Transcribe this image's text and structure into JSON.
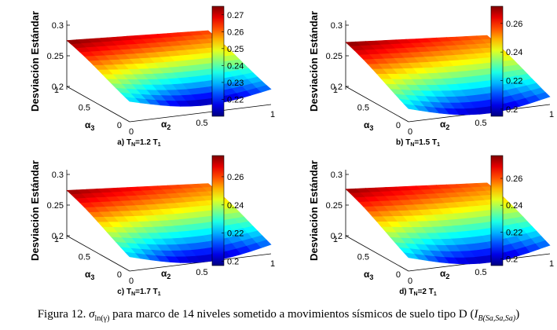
{
  "figure": {
    "caption": {
      "prefix": "Figura 12.",
      "symbol": "σ",
      "symbol_sub": "ln(γ)",
      "text": "para marco de 14 niveles sometido a movimientos sísmicos de suelo tipo D (",
      "im": "I",
      "im_sub": "B(Sa,Sa,Sa)",
      "suffix": ")"
    }
  },
  "chart_data": [
    {
      "type": "surface3d",
      "subtitle": "a) T",
      "subtitle_sub": "N",
      "subtitle_rest": "=1.2 T",
      "subtitle_sub2": "1",
      "zlabel": "Desviación Estándar",
      "xlabel": "α",
      "xlabel_sub": "2",
      "ylabel": "α",
      "ylabel_sub": "3",
      "x_ticks": [
        "0",
        "0.5",
        "1"
      ],
      "y_ticks": [
        "0",
        "0.5",
        "1"
      ],
      "z_ticks": [
        "0.2",
        "0.25",
        "0.3"
      ],
      "zlim": [
        0.2,
        0.3
      ],
      "colorbar": {
        "min": 0.21,
        "max": 0.275,
        "ticks": [
          0.22,
          0.23,
          0.24,
          0.25,
          0.26,
          0.27
        ],
        "tick_labels": [
          "0.22",
          "0.23",
          "0.24",
          "0.25",
          "0.26",
          "0.27"
        ]
      },
      "surface": {
        "corner_a2_0_a3_1": 0.275,
        "corner_a2_1_a3_1": 0.263,
        "corner_a2_0_a3_0": 0.246,
        "corner_a2_1_a3_0": 0.235,
        "valley_min": 0.212
      }
    },
    {
      "type": "surface3d",
      "subtitle": "b) T",
      "subtitle_sub": "N",
      "subtitle_rest": "=1.5 T",
      "subtitle_sub2": "1",
      "zlabel": "Desviación Estándar",
      "xlabel": "α",
      "xlabel_sub": "2",
      "ylabel": "α",
      "ylabel_sub": "3",
      "x_ticks": [
        "0",
        "0.5",
        "1"
      ],
      "y_ticks": [
        "0",
        "0.5",
        "1"
      ],
      "z_ticks": [
        "0.2",
        "0.25",
        "0.3"
      ],
      "zlim": [
        0.2,
        0.3
      ],
      "colorbar": {
        "min": 0.195,
        "max": 0.272,
        "ticks": [
          0.2,
          0.22,
          0.24,
          0.26
        ],
        "tick_labels": [
          "0.2",
          "0.22",
          "0.24",
          "0.26"
        ]
      },
      "surface": {
        "corner_a2_0_a3_1": 0.272,
        "corner_a2_1_a3_1": 0.255,
        "corner_a2_0_a3_0": 0.238,
        "corner_a2_1_a3_0": 0.228,
        "valley_min": 0.198
      }
    },
    {
      "type": "surface3d",
      "subtitle": "c) T",
      "subtitle_sub": "N",
      "subtitle_rest": "=1.7 T",
      "subtitle_sub2": "1",
      "zlabel": "Desviación Estándar",
      "xlabel": "α",
      "xlabel_sub": "2",
      "ylabel": "α",
      "ylabel_sub": "3",
      "x_ticks": [
        "0",
        "0.5",
        "1"
      ],
      "y_ticks": [
        "0",
        "0.5",
        "1"
      ],
      "z_ticks": [
        "0.2",
        "0.25",
        "0.3"
      ],
      "zlim": [
        0.2,
        0.3
      ],
      "colorbar": {
        "min": 0.197,
        "max": 0.275,
        "ticks": [
          0.2,
          0.22,
          0.24,
          0.26
        ],
        "tick_labels": [
          "0.2",
          "0.22",
          "0.24",
          "0.26"
        ]
      },
      "surface": {
        "corner_a2_0_a3_1": 0.274,
        "corner_a2_1_a3_1": 0.257,
        "corner_a2_0_a3_0": 0.24,
        "corner_a2_1_a3_0": 0.232,
        "valley_min": 0.2
      }
    },
    {
      "type": "surface3d",
      "subtitle": "d) T",
      "subtitle_sub": "N",
      "subtitle_rest": "=2 T",
      "subtitle_sub2": "1",
      "zlabel": "Desviación Estándar",
      "xlabel": "α",
      "xlabel_sub": "2",
      "ylabel": "α",
      "ylabel_sub": "3",
      "x_ticks": [
        "0",
        "0.5",
        "1"
      ],
      "y_ticks": [
        "0",
        "0.5",
        "1"
      ],
      "z_ticks": [
        "0.2",
        "0.25",
        "0.3"
      ],
      "zlim": [
        0.2,
        0.3
      ],
      "colorbar": {
        "min": 0.195,
        "max": 0.277,
        "ticks": [
          0.2,
          0.22,
          0.24,
          0.26
        ],
        "tick_labels": [
          "0.2",
          "0.22",
          "0.24",
          "0.26"
        ]
      },
      "surface": {
        "corner_a2_0_a3_1": 0.276,
        "corner_a2_1_a3_1": 0.258,
        "corner_a2_0_a3_0": 0.24,
        "corner_a2_1_a3_0": 0.233,
        "valley_min": 0.198
      }
    }
  ]
}
